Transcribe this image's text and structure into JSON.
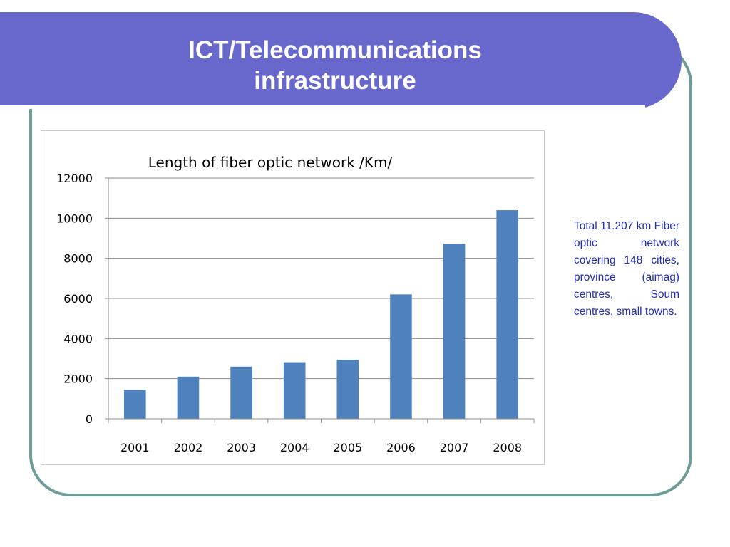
{
  "slide": {
    "title_line1": "ICT/Telecommunications",
    "title_line2": "infrastructure",
    "note": "Total 11.207 km Fiber optic network covering 148 cities, province (aimag) centres, Soum centres, small towns."
  },
  "colors": {
    "banner": "#6868cc",
    "frame": "#6e9c98",
    "bar": "#4f81bd",
    "note_text": "#1f2fb4"
  },
  "chart_data": {
    "type": "bar",
    "title": "Length of fiber optic network /Km/",
    "xlabel": "",
    "ylabel": "",
    "categories": [
      "2001",
      "2002",
      "2003",
      "2004",
      "2005",
      "2006",
      "2007",
      "2008"
    ],
    "values": [
      1450,
      2100,
      2600,
      2820,
      2940,
      6200,
      8720,
      10400
    ],
    "ylim": [
      0,
      12000
    ],
    "yticks": [
      0,
      2000,
      4000,
      6000,
      8000,
      10000,
      12000
    ],
    "grid": true,
    "legend": "none"
  }
}
